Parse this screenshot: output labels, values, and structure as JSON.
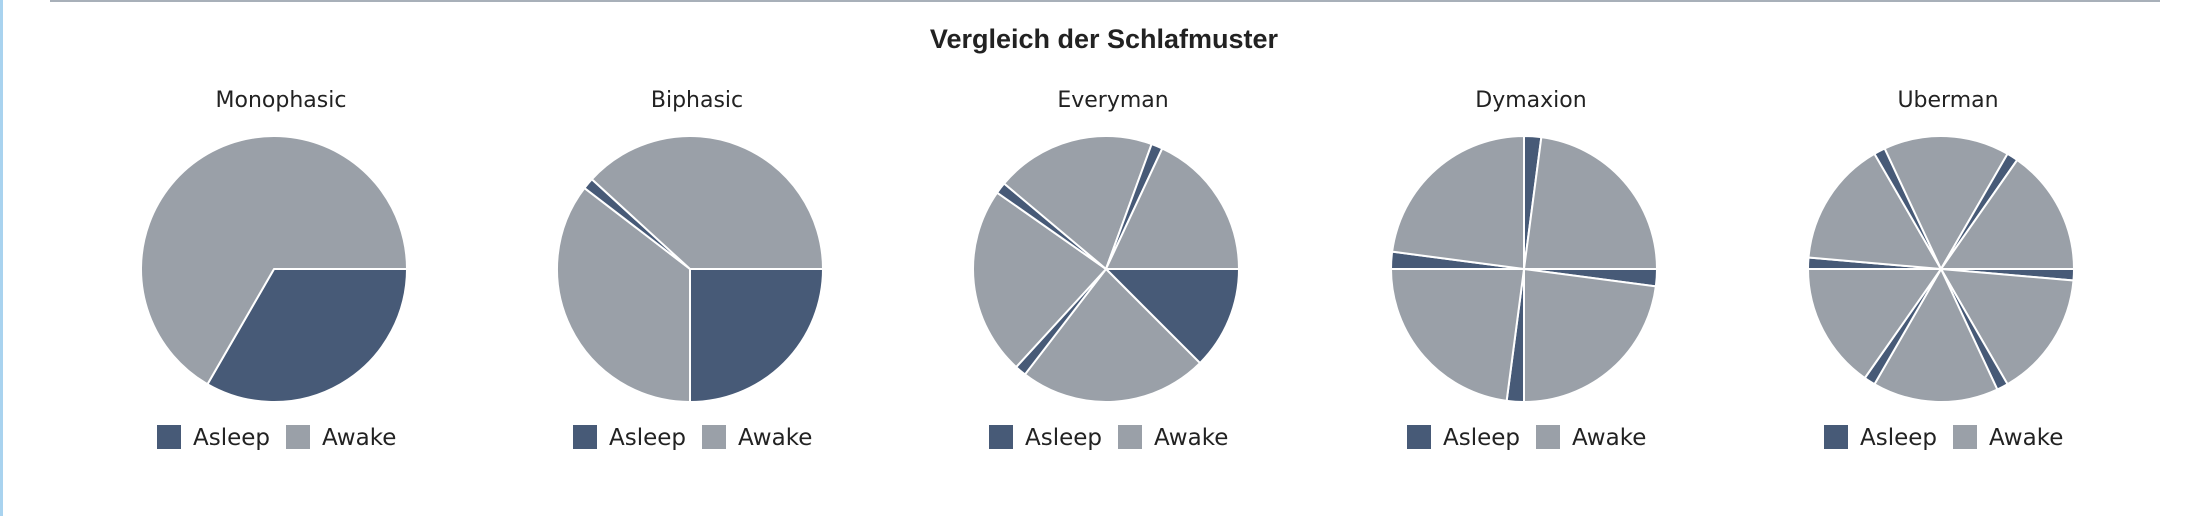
{
  "title": "Vergleich der Schlafmuster",
  "colors": {
    "asleep": "#475a77",
    "awake": "#9aa0a8",
    "divider": "#ffffff"
  },
  "legend_labels": [
    "Asleep",
    "Awake"
  ],
  "chart_data": [
    {
      "type": "pie",
      "title": "Monophasic",
      "segments": [
        {
          "state": "Asleep",
          "hours": 8
        },
        {
          "state": "Awake",
          "hours": 16
        }
      ]
    },
    {
      "type": "pie",
      "title": "Biphasic",
      "segments": [
        {
          "state": "Asleep",
          "hours": 6
        },
        {
          "state": "Awake",
          "hours": 8.5
        },
        {
          "state": "Asleep",
          "hours": 0.33
        },
        {
          "state": "Awake",
          "hours": 9.17
        }
      ]
    },
    {
      "type": "pie",
      "title": "Everyman",
      "segments": [
        {
          "state": "Asleep",
          "hours": 3
        },
        {
          "state": "Awake",
          "hours": 5.5
        },
        {
          "state": "Asleep",
          "hours": 0.33
        },
        {
          "state": "Awake",
          "hours": 5.5
        },
        {
          "state": "Asleep",
          "hours": 0.33
        },
        {
          "state": "Awake",
          "hours": 4.67
        },
        {
          "state": "Asleep",
          "hours": 0.33
        },
        {
          "state": "Awake",
          "hours": 4.33
        }
      ]
    },
    {
      "type": "pie",
      "title": "Dymaxion",
      "segments": [
        {
          "state": "Asleep",
          "hours": 0.5
        },
        {
          "state": "Awake",
          "hours": 5.5
        },
        {
          "state": "Asleep",
          "hours": 0.5
        },
        {
          "state": "Awake",
          "hours": 5.5
        },
        {
          "state": "Asleep",
          "hours": 0.5
        },
        {
          "state": "Awake",
          "hours": 5.5
        },
        {
          "state": "Asleep",
          "hours": 0.5
        },
        {
          "state": "Awake",
          "hours": 5.5
        }
      ]
    },
    {
      "type": "pie",
      "title": "Uberman",
      "segments": [
        {
          "state": "Asleep",
          "hours": 0.33
        },
        {
          "state": "Awake",
          "hours": 3.67
        },
        {
          "state": "Asleep",
          "hours": 0.33
        },
        {
          "state": "Awake",
          "hours": 3.67
        },
        {
          "state": "Asleep",
          "hours": 0.33
        },
        {
          "state": "Awake",
          "hours": 3.67
        },
        {
          "state": "Asleep",
          "hours": 0.33
        },
        {
          "state": "Awake",
          "hours": 3.67
        },
        {
          "state": "Asleep",
          "hours": 0.33
        },
        {
          "state": "Awake",
          "hours": 3.67
        },
        {
          "state": "Asleep",
          "hours": 0.33
        },
        {
          "state": "Awake",
          "hours": 3.67
        }
      ]
    }
  ]
}
